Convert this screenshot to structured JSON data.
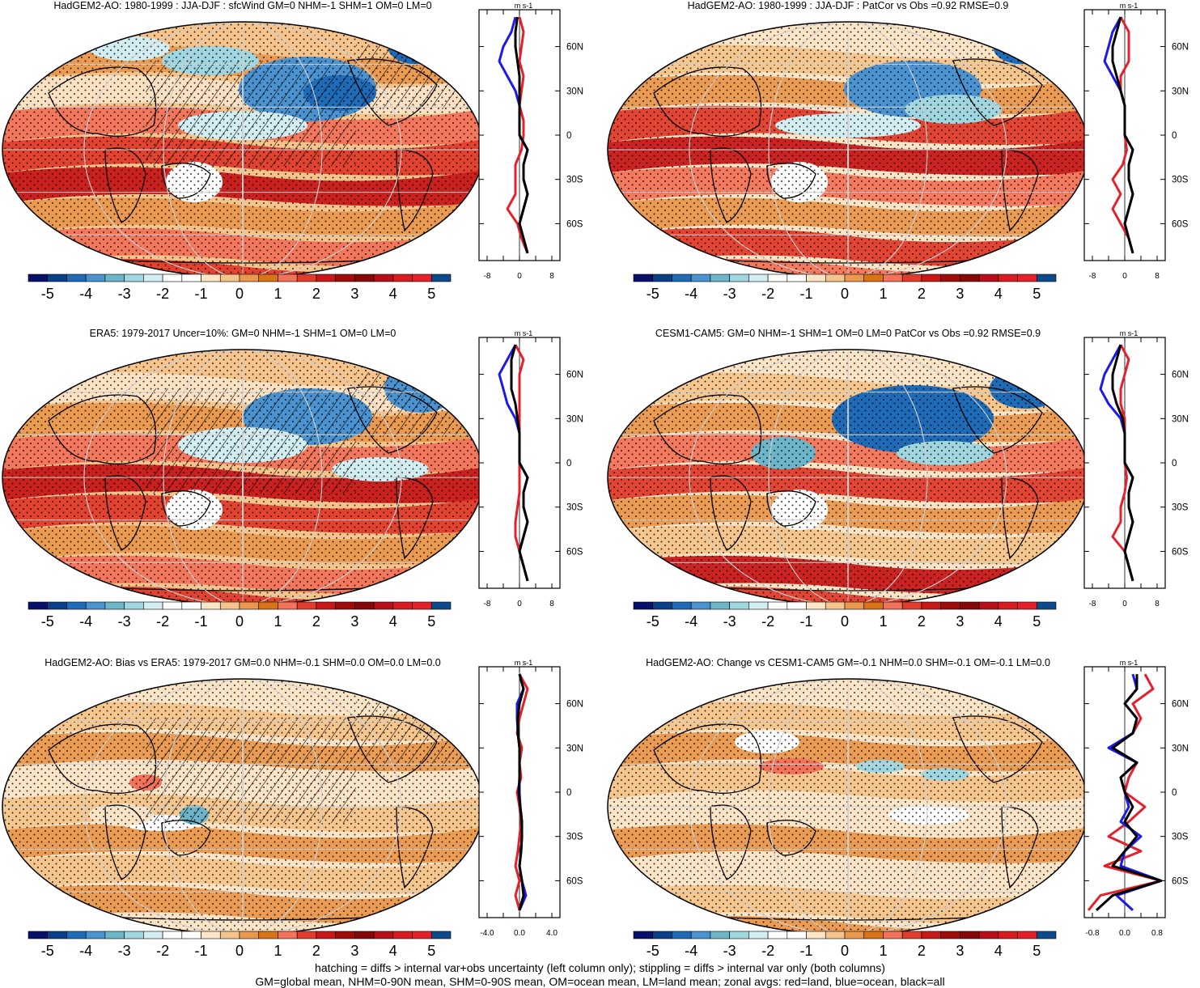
{
  "palette": [
    "#08106b",
    "#0a3f8a",
    "#1e6bb8",
    "#4a93d0",
    "#6db5c8",
    "#9fd6df",
    "#d3eef2",
    "#ffffff",
    "#ffffff",
    "#fce4c6",
    "#f5c48c",
    "#e9984e",
    "#d97318",
    "#f2735a",
    "#e03c2c",
    "#c81818",
    "#a00c0c",
    "#860808",
    "#b80f1a",
    "#d81c20",
    "#e6202a",
    "#0c4a8c"
  ],
  "colors": {
    "land": "#e6202a",
    "ocean": "#1a1aee",
    "all": "#000000"
  },
  "colorbar_labels": [
    "-5",
    "-4",
    "-3",
    "-2",
    "-1",
    "0",
    "1",
    "2",
    "3",
    "4",
    "5"
  ],
  "footer": {
    "line1": "hatching = diffs > internal var+obs uncertainty (left column only); stippling = diffs > internal var only (both columns)",
    "line2": "GM=global mean, NHM=0-90N mean, SHM=0-90S mean, OM=ocean mean, LM=land mean; zonal avgs: red=land, blue=ocean, black=all"
  },
  "panels": [
    {
      "title": "HadGEM2-AO: 1980-1999 : JJA-DJF : sfcWind GM=0 NHM=-1 SHM=1 OM=0 LM=0",
      "unit": "m s-1",
      "xticks": [
        "-8",
        "0",
        "8"
      ],
      "lat_ticks": [
        "60N",
        "30N",
        "0",
        "30S",
        "60S"
      ]
    },
    {
      "title": "HadGEM2-AO: 1980-1999 : JJA-DJF : PatCor vs Obs =0.92 RMSE=0.9",
      "unit": "m s-1",
      "xticks": [
        "-8",
        "0",
        "8"
      ],
      "lat_ticks": [
        "60N",
        "30N",
        "0",
        "30S",
        "60S"
      ]
    },
    {
      "title": "ERA5: 1979-2017 Uncer=10%: GM=0 NHM=-1 SHM=1 OM=0 LM=0",
      "unit": "m s-1",
      "xticks": [
        "-8",
        "0",
        "8"
      ],
      "lat_ticks": [
        "60N",
        "30N",
        "0",
        "30S",
        "60S"
      ]
    },
    {
      "title": "CESM1-CAM5: GM=0 NHM=-1 SHM=1 OM=0 LM=0 PatCor vs Obs =0.92 RMSE=0.9",
      "unit": "m s-1",
      "xticks": [
        "-8",
        "0",
        "8"
      ],
      "lat_ticks": [
        "60N",
        "30N",
        "0",
        "30S",
        "60S"
      ]
    },
    {
      "title": "HadGEM2-AO: Bias vs ERA5: 1979-2017 GM=0.0 NHM=-0.1 SHM=0.0 OM=0.0 LM=0.0",
      "unit": "m s-1",
      "xticks": [
        "-4.0",
        "0.0",
        "4.0"
      ],
      "lat_ticks": [
        "60N",
        "30N",
        "0",
        "30S",
        "60S"
      ]
    },
    {
      "title": "HadGEM2-AO: Change vs CESM1-CAM5 GM=-0.1 NHM=0.0 SHM=-0.1 OM=-0.1 LM=0.0",
      "unit": "m s-1",
      "xticks": [
        "-0.8",
        "0.0",
        "0.8"
      ],
      "lat_ticks": [
        "60N",
        "30N",
        "0",
        "30S",
        "60S"
      ]
    }
  ],
  "chart_data": [
    {
      "type": "line",
      "title": "HadGEM2-AO: 1980-1999 : JJA-DJF : sfcWind GM=0 NHM=-1 SHM=1 OM=0 LM=0",
      "xlabel": "m s-1",
      "xlim": [
        -10,
        10
      ],
      "ylim": [
        -85,
        85
      ],
      "lat": [
        80,
        70,
        60,
        50,
        40,
        30,
        20,
        10,
        0,
        -10,
        -20,
        -30,
        -40,
        -50,
        -60,
        -70,
        -80
      ],
      "series": [
        {
          "name": "land",
          "values": [
            0,
            1,
            0.5,
            0,
            1,
            0.5,
            0,
            1,
            1,
            0.5,
            -1,
            -1,
            -1,
            -3,
            -0.5,
            0.5,
            2
          ]
        },
        {
          "name": "ocean",
          "values": [
            -1,
            -2,
            -4,
            -5,
            -3,
            -1,
            0,
            0,
            0,
            2,
            1,
            1,
            2,
            1,
            0,
            1,
            2
          ]
        },
        {
          "name": "all",
          "values": [
            -0.5,
            -1,
            -1,
            -0.5,
            0,
            0,
            0,
            0,
            0,
            2,
            1,
            1,
            2,
            1,
            0,
            1,
            2
          ]
        }
      ]
    },
    {
      "type": "line",
      "title": "HadGEM2-AO: 1980-1999 : JJA-DJF : PatCor vs Obs =0.92 RMSE=0.9",
      "xlabel": "m s-1",
      "xlim": [
        -10,
        10
      ],
      "ylim": [
        -85,
        85
      ],
      "lat": [
        80,
        70,
        60,
        50,
        40,
        30,
        20,
        10,
        0,
        -10,
        -20,
        -30,
        -40,
        -50,
        -60,
        -70,
        -80
      ],
      "series": [
        {
          "name": "land",
          "values": [
            -1,
            1,
            1,
            1,
            -1,
            -1,
            0,
            0,
            0,
            0.5,
            -0.5,
            -3,
            -1,
            -3,
            -1,
            1,
            2
          ]
        },
        {
          "name": "ocean",
          "values": [
            -1,
            -3,
            -4,
            -5,
            -3,
            -1,
            0,
            0,
            0,
            2,
            1,
            1,
            2,
            1,
            0,
            1,
            2
          ]
        },
        {
          "name": "all",
          "values": [
            -1,
            -2,
            -3,
            -3,
            -2,
            -1,
            0,
            0,
            0,
            2,
            1,
            1,
            2,
            1,
            0,
            1,
            2
          ]
        }
      ]
    },
    {
      "type": "line",
      "title": "ERA5: 1979-2017 Uncer=10%: GM=0 NHM=-1 SHM=1 OM=0 LM=0",
      "xlabel": "m s-1",
      "xlim": [
        -10,
        10
      ],
      "ylim": [
        -85,
        85
      ],
      "lat": [
        80,
        70,
        60,
        50,
        40,
        30,
        20,
        10,
        0,
        -10,
        -20,
        -30,
        -40,
        -50,
        -60,
        -70,
        -80
      ],
      "series": [
        {
          "name": "land",
          "values": [
            -1,
            1,
            0,
            0,
            0,
            0,
            0,
            0,
            0,
            0,
            0,
            -0.5,
            -1,
            -1,
            0,
            1,
            2
          ]
        },
        {
          "name": "ocean",
          "values": [
            -1,
            -3,
            -5,
            -4,
            -3,
            -1,
            0,
            0,
            0,
            2,
            1,
            1,
            2,
            1,
            0,
            1,
            2
          ]
        },
        {
          "name": "all",
          "values": [
            -1,
            -2,
            -2,
            -2,
            -1,
            -0.5,
            0,
            0,
            0,
            2,
            1,
            1,
            2,
            1,
            0,
            1,
            2
          ]
        }
      ]
    },
    {
      "type": "line",
      "title": "CESM1-CAM5: GM=0 NHM=-1 SHM=1 OM=0 LM=0 PatCor vs Obs =0.92 RMSE=0.9",
      "xlabel": "m s-1",
      "xlim": [
        -10,
        10
      ],
      "ylim": [
        -85,
        85
      ],
      "lat": [
        80,
        70,
        60,
        50,
        40,
        30,
        20,
        10,
        0,
        -10,
        -20,
        -30,
        -40,
        -50,
        -60,
        -70,
        -80
      ],
      "series": [
        {
          "name": "land",
          "values": [
            -1,
            1,
            0,
            -1,
            -1,
            0,
            0,
            0,
            0,
            0.5,
            0,
            -1,
            -1,
            -3,
            0,
            1,
            2
          ]
        },
        {
          "name": "ocean",
          "values": [
            -1,
            -3,
            -5,
            -6,
            -4,
            -1,
            0,
            0,
            0,
            2,
            1,
            1,
            2,
            1,
            0,
            1,
            2
          ]
        },
        {
          "name": "all",
          "values": [
            -1,
            -2,
            -3,
            -3,
            -2,
            -0.5,
            0,
            0,
            0,
            2,
            1,
            1,
            2,
            1,
            0,
            1,
            2
          ]
        }
      ]
    },
    {
      "type": "line",
      "title": "HadGEM2-AO: Bias vs ERA5: 1979-2017 GM=0.0 NHM=-0.1 SHM=0.0 OM=0.0 LM=0.0",
      "xlabel": "m s-1",
      "xlim": [
        -5,
        5
      ],
      "ylim": [
        -85,
        85
      ],
      "lat": [
        80,
        70,
        60,
        50,
        40,
        30,
        20,
        10,
        0,
        -10,
        -20,
        -30,
        -40,
        -50,
        -60,
        -70,
        -80
      ],
      "series": [
        {
          "name": "land",
          "values": [
            0,
            1,
            0.5,
            0,
            -0.3,
            0.3,
            0,
            0.2,
            -0.3,
            0,
            0.2,
            0,
            -0.2,
            -0.5,
            0,
            -0.5,
            0
          ]
        },
        {
          "name": "ocean",
          "values": [
            0,
            0.5,
            -0.3,
            -0.3,
            -0.2,
            0,
            0,
            0,
            0,
            0.1,
            0.3,
            0.3,
            0.2,
            0,
            0.3,
            0.8,
            0
          ]
        },
        {
          "name": "all",
          "values": [
            0,
            0.5,
            0,
            -0.2,
            -0.2,
            0,
            0,
            0,
            -0.1,
            0.1,
            0.3,
            0.3,
            0.2,
            0,
            0.3,
            0.5,
            0
          ]
        }
      ]
    },
    {
      "type": "line",
      "title": "HadGEM2-AO: Change vs CESM1-CAM5 GM=-0.1 NHM=0.0 SHM=-0.1 OM=-0.1 LM=0.0",
      "xlabel": "m s-1",
      "xlim": [
        -1,
        1
      ],
      "ylim": [
        -85,
        85
      ],
      "lat": [
        80,
        70,
        60,
        50,
        40,
        30,
        20,
        10,
        0,
        -10,
        -20,
        -30,
        -40,
        -50,
        -60,
        -70,
        -80
      ],
      "series": [
        {
          "name": "land",
          "values": [
            0.5,
            0.7,
            0.2,
            0.4,
            0.2,
            -0.3,
            0.3,
            0.1,
            0,
            0.5,
            0.1,
            -0.4,
            0.4,
            -0.5,
            0.9,
            -0.6,
            -0.9
          ]
        },
        {
          "name": "ocean",
          "values": [
            0.2,
            0.3,
            0,
            0.3,
            0.2,
            -0.4,
            0.3,
            -0.1,
            0,
            0.1,
            -0.1,
            0.4,
            0,
            -0.1,
            0.9,
            -0.2,
            0.2
          ]
        },
        {
          "name": "all",
          "values": [
            0.3,
            0.3,
            0,
            0.3,
            0.2,
            -0.3,
            0.3,
            -0.1,
            0,
            0.2,
            0,
            0.3,
            0,
            -0.3,
            0.9,
            -0.3,
            -0.7
          ]
        }
      ]
    }
  ]
}
